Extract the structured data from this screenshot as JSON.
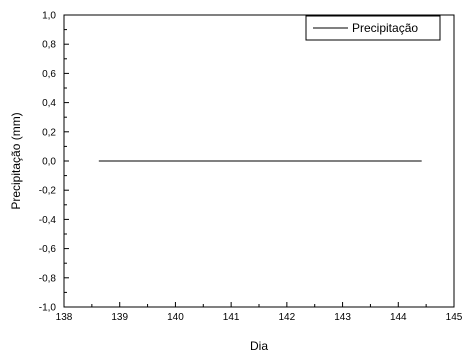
{
  "chart_data": {
    "type": "line",
    "xlabel": "Dia",
    "ylabel": "Precipitação (mm)",
    "xlim": [
      138,
      145
    ],
    "ylim": [
      -1.0,
      1.0
    ],
    "x_ticks": [
      138,
      139,
      140,
      141,
      142,
      143,
      144,
      145
    ],
    "x_tick_labels": [
      "138",
      "139",
      "140",
      "141",
      "142",
      "143",
      "144",
      "145"
    ],
    "y_ticks": [
      -1.0,
      -0.8,
      -0.6,
      -0.4,
      -0.2,
      0.0,
      0.2,
      0.4,
      0.6,
      0.8,
      1.0
    ],
    "y_tick_labels": [
      "-1,0",
      "-0,8",
      "-0,6",
      "-0,4",
      "-0,2",
      "0,0",
      "0,2",
      "0,4",
      "0,6",
      "0,8",
      "1,0"
    ],
    "grid": false,
    "legend_position": "top-right",
    "series": [
      {
        "name": "Precipitação",
        "color": "#000000",
        "x": [
          138.625,
          144.42
        ],
        "y": [
          0.0,
          0.0
        ]
      }
    ]
  }
}
